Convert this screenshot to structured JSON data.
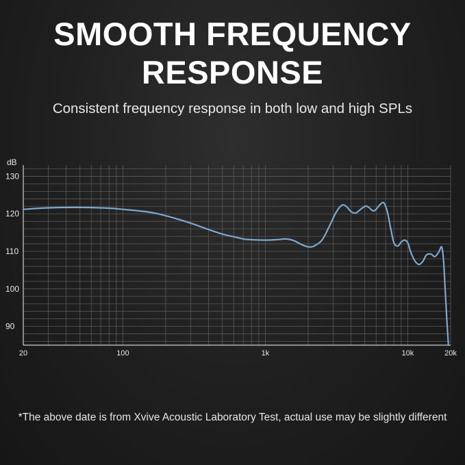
{
  "header": {
    "title_line1": "SMOOTH FREQUENCY",
    "title_line2": "RESPONSE",
    "subtitle": "Consistent frequency response in both low and high SPLs"
  },
  "footnote": "*The above date is from Xvive Acoustic Laboratory Test, actual use may be slightly different",
  "colors": {
    "curve": "#7ea7cf",
    "grid": "#5a5a5a",
    "axis": "#cfcfcf"
  },
  "chart_data": {
    "type": "line",
    "x_scale": "log",
    "xlim": [
      20,
      20000
    ],
    "ylim": [
      85,
      133
    ],
    "ylabel": "dB",
    "xlabel": "",
    "grid": true,
    "x_ticks": [
      {
        "value": 20,
        "label": "20"
      },
      {
        "value": 100,
        "label": "100"
      },
      {
        "value": 1000,
        "label": "1k"
      },
      {
        "value": 10000,
        "label": "10k"
      },
      {
        "value": 20000,
        "label": "20k"
      }
    ],
    "y_ticks": [
      {
        "value": 90,
        "label": "90"
      },
      {
        "value": 100,
        "label": "100"
      },
      {
        "value": 110,
        "label": "110"
      },
      {
        "value": 120,
        "label": "120"
      },
      {
        "value": 130,
        "label": "130"
      }
    ],
    "series": [
      {
        "points": [
          [
            20,
            121.2
          ],
          [
            30,
            121.6
          ],
          [
            50,
            121.7
          ],
          [
            80,
            121.5
          ],
          [
            100,
            121.2
          ],
          [
            150,
            120.5
          ],
          [
            200,
            119.5
          ],
          [
            300,
            117.5
          ],
          [
            400,
            115.8
          ],
          [
            500,
            114.6
          ],
          [
            600,
            113.9
          ],
          [
            700,
            113.3
          ],
          [
            800,
            113.1
          ],
          [
            1000,
            113.0
          ],
          [
            1200,
            113.1
          ],
          [
            1400,
            113.3
          ],
          [
            1600,
            112.8
          ],
          [
            1800,
            111.8
          ],
          [
            2000,
            111.2
          ],
          [
            2200,
            111.4
          ],
          [
            2500,
            113.0
          ],
          [
            2800,
            116.5
          ],
          [
            3100,
            120.0
          ],
          [
            3300,
            121.6
          ],
          [
            3500,
            122.4
          ],
          [
            3700,
            122.0
          ],
          [
            4000,
            120.6
          ],
          [
            4300,
            120.2
          ],
          [
            4600,
            121.0
          ],
          [
            5000,
            122.0
          ],
          [
            5300,
            121.8
          ],
          [
            5700,
            120.8
          ],
          [
            6000,
            121.2
          ],
          [
            6400,
            122.5
          ],
          [
            6800,
            122.9
          ],
          [
            7200,
            120.5
          ],
          [
            7600,
            116.0
          ],
          [
            8000,
            112.3
          ],
          [
            8500,
            111.4
          ],
          [
            9000,
            112.5
          ],
          [
            9500,
            113.0
          ],
          [
            10000,
            112.3
          ],
          [
            10500,
            109.8
          ],
          [
            11200,
            107.5
          ],
          [
            12000,
            106.5
          ],
          [
            12800,
            107.4
          ],
          [
            13500,
            109.0
          ],
          [
            14500,
            109.3
          ],
          [
            15500,
            108.6
          ],
          [
            16500,
            109.8
          ],
          [
            17300,
            111.2
          ],
          [
            17800,
            108.0
          ],
          [
            18300,
            100.0
          ],
          [
            18800,
            92.0
          ],
          [
            19300,
            85.0
          ]
        ]
      }
    ]
  }
}
